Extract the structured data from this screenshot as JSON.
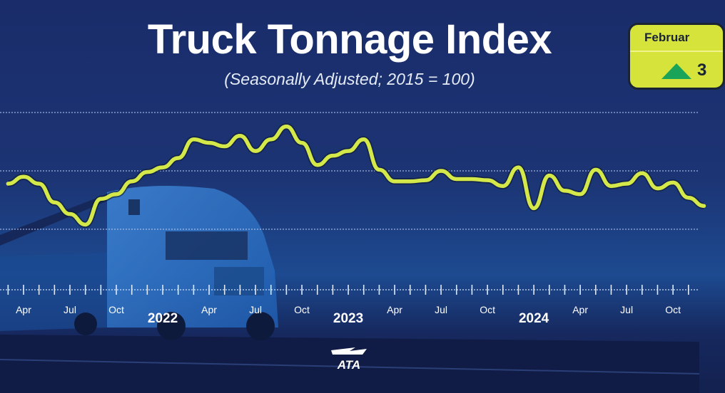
{
  "chart_data": {
    "type": "line",
    "title": "Truck Tonnage Index",
    "subtitle": "(Seasonally Adjusted; 2015 = 100)",
    "xlabel": "",
    "ylabel": "",
    "x": [
      "2021-03",
      "2021-04",
      "2021-05",
      "2021-06",
      "2021-07",
      "2021-08",
      "2021-09",
      "2021-10",
      "2021-11",
      "2021-12",
      "2022-01",
      "2022-02",
      "2022-03",
      "2022-04",
      "2022-05",
      "2022-06",
      "2022-07",
      "2022-08",
      "2022-09",
      "2022-10",
      "2022-11",
      "2022-12",
      "2023-01",
      "2023-02",
      "2023-03",
      "2023-04",
      "2023-05",
      "2023-06",
      "2023-07",
      "2023-08",
      "2023-09",
      "2023-10",
      "2023-11",
      "2023-12",
      "2024-01",
      "2024-02",
      "2024-03",
      "2024-04",
      "2024-05",
      "2024-06",
      "2024-07",
      "2024-08",
      "2024-09",
      "2024-10",
      "2024-11",
      "2024-12"
    ],
    "values": [
      113.9,
      114.5,
      113.9,
      112.3,
      111.3,
      110.4,
      112.6,
      113.0,
      114.1,
      114.9,
      115.3,
      116.1,
      117.7,
      117.4,
      117.1,
      118.0,
      116.7,
      117.7,
      118.8,
      117.4,
      115.5,
      116.3,
      116.7,
      117.7,
      115.1,
      114.1,
      114.1,
      114.2,
      115.0,
      114.3,
      114.3,
      114.2,
      113.7,
      115.3,
      111.8,
      114.6,
      113.3,
      113.0,
      115.1,
      113.7,
      113.9,
      114.8,
      113.5,
      114.0,
      112.7,
      112.0
    ],
    "gridlines": [
      110,
      115,
      120
    ],
    "grid": true,
    "tick_labels": [
      {
        "month": "2021-04",
        "label": "Apr",
        "year": false
      },
      {
        "month": "2021-07",
        "label": "Jul",
        "year": false
      },
      {
        "month": "2021-10",
        "label": "Oct",
        "year": false
      },
      {
        "month": "2022-01",
        "label": "2022",
        "year": true
      },
      {
        "month": "2022-04",
        "label": "Apr",
        "year": false
      },
      {
        "month": "2022-07",
        "label": "Jul",
        "year": false
      },
      {
        "month": "2022-10",
        "label": "Oct",
        "year": false
      },
      {
        "month": "2023-01",
        "label": "2023",
        "year": true
      },
      {
        "month": "2023-04",
        "label": "Apr",
        "year": false
      },
      {
        "month": "2023-07",
        "label": "Jul",
        "year": false
      },
      {
        "month": "2023-10",
        "label": "Oct",
        "year": false
      },
      {
        "month": "2024-01",
        "label": "2024",
        "year": true
      },
      {
        "month": "2024-04",
        "label": "Apr",
        "year": false
      },
      {
        "month": "2024-07",
        "label": "Jul",
        "year": false
      },
      {
        "month": "2024-10",
        "label": "Oct",
        "year": false
      }
    ],
    "colors": {
      "line": "#d4e84a",
      "line_glow": "#0d1a30",
      "background": "#1c3474",
      "badge": "#d6e33a",
      "badge_arrow": "#1aa45a"
    }
  },
  "badge": {
    "month": "Februar",
    "value": "3",
    "arrow_icon": "up-triangle"
  },
  "logo": {
    "text": "ATA"
  }
}
